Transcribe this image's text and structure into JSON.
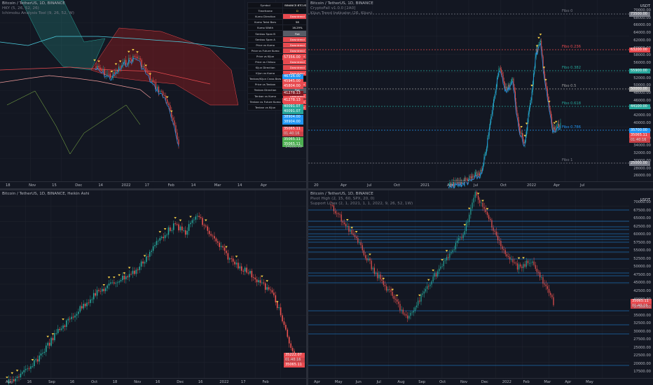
{
  "panes": {
    "tl": {
      "legend": [
        "Bitcoin / TetherUS, 1D, BINANCE",
        "HKY (5, 26, 52, 26)",
        "Ichimoku Analysis Tool (9, 26, 52, W)"
      ],
      "y_ticks": [],
      "x_ticks": [
        "18",
        "Nov",
        "15",
        "Dec",
        "14",
        "2022",
        "17",
        "Feb",
        "14",
        "Mar",
        "14",
        "Apr"
      ],
      "table": [
        [
          "Symbol",
          "BINANCE:BTCUSDT",
          "plain"
        ],
        [
          "Timeframe",
          "D",
          "yellow"
        ],
        [
          "Kumo Direction",
          "Downtrend",
          "red"
        ],
        [
          "Kumo Twist Bars",
          "58",
          "plain"
        ],
        [
          "Kumo Width",
          "16.29%",
          "plain"
        ],
        [
          "Senkou Span B",
          "Flat",
          "grey"
        ],
        [
          "Senkou Span A",
          "Downtrend",
          "red"
        ],
        [
          "Price vs Kumo",
          "Downtrend",
          "red"
        ],
        [
          "Price vs Future Kumo",
          "Downtrend",
          "red"
        ],
        [
          "Price vs Kijun",
          "Downtrend",
          "red"
        ],
        [
          "Price vs Chikou",
          "Downtrend",
          "red"
        ],
        [
          "Kijun Direction",
          "Downtrend",
          "red"
        ],
        [
          "Kijun vs Kumo",
          "Downtrend",
          "red"
        ],
        [
          "Tenkan/Kijun Cross Bars",
          "18",
          "plain"
        ],
        [
          "Price vs Tenkan",
          "Downtrend",
          "red"
        ],
        [
          "Tenkan Direction",
          "Flat",
          "grey"
        ],
        [
          "Tenkan vs Kumo",
          "Downtrend",
          "red"
        ],
        [
          "Tenkan vs Future Kumo",
          "Downtrend",
          "red"
        ],
        [
          "Tenkan vs Kijun",
          "Downtrend",
          "red"
        ]
      ],
      "price_tags": [
        {
          "line1": "57356.00",
          "color": "#e84a4f"
        },
        {
          "line1": "46726.00",
          "color": "#2196f3"
        },
        {
          "line1": "45945.00",
          "color": "#e84a4f"
        },
        {
          "line1": "45804.00",
          "color": "#e84a4f"
        },
        {
          "line1": "41278.13",
          "color": "#801922"
        },
        {
          "line1": "41278.13",
          "color": "#e84a4f"
        },
        {
          "line1": "40091.07",
          "color": "#26a69a"
        },
        {
          "line1": "40091.07",
          "color": "#26a69a"
        },
        {
          "line1": "38904.00",
          "color": "#2196f3"
        },
        {
          "line1": "38904.00",
          "color": "#2196f3"
        },
        {
          "line1": "35065.11",
          "line2": "01:40:16",
          "color": "#e84a4f"
        },
        {
          "line1": "35065.11",
          "color": "#4caf50"
        },
        {
          "line1": "35065.11",
          "color": "#4caf50"
        }
      ],
      "axis_labels": [
        "34000.00"
      ]
    },
    "tr": {
      "legend": [
        "Bitcoin / TetherUS, 1D, BINANCE",
        "CryptoFall v1.0.0 [2A0]",
        "Kijun Trend Indicator (26, Kijun)"
      ],
      "usdt": "USDT",
      "y_ticks": [
        "70000.00",
        "68000.00",
        "66000.00",
        "64000.00",
        "62000.00",
        "60000.00",
        "58000.00",
        "56000.00",
        "54000.00",
        "52000.00",
        "50000.00",
        "48000.00",
        "46000.00",
        "44000.00",
        "42000.00",
        "40000.00",
        "38000.00",
        "36000.00",
        "34000.00",
        "32000.00",
        "30000.00",
        "28000.00",
        "26000.00"
      ],
      "x_ticks": [
        "20",
        "Apr",
        "Jul",
        "Oct",
        "2021",
        "Apr",
        "Jul",
        "Oct",
        "2022",
        "Apr",
        "Jul"
      ],
      "fibos": [
        {
          "label": "Fibo 0",
          "color": "#787b86",
          "tag": "73500.00"
        },
        {
          "label": "Fibo 0.236",
          "color": "#e84a4f",
          "tag": "63200.00"
        },
        {
          "label": "Fibo 0.382",
          "color": "#26a69a",
          "tag": "55900.00"
        },
        {
          "label": "Fibo 0.5",
          "color": "#9e9e9e",
          "tag": "50000.00"
        },
        {
          "label": "Fibo 0.618",
          "color": "#26a69a",
          "tag": "44100.00"
        },
        {
          "label": "Fibo 0.786",
          "color": "#2196f3",
          "tag": "35700.00"
        },
        {
          "label": "Fibo 1",
          "color": "#787b86",
          "tag": "25000.00"
        }
      ],
      "last_tag": {
        "line1": "35065.11",
        "line2": "01:40:16",
        "color": "#e84a4f"
      }
    },
    "bl": {
      "legend": [
        "Bitcoin / TetherUS, 1D, BINANCE, Heikin Ashi"
      ],
      "x_ticks": [
        "Aug",
        "16",
        "Sep",
        "16",
        "Oct",
        "18",
        "Nov",
        "16",
        "Dec",
        "16",
        "2022",
        "17",
        "Feb"
      ],
      "tags": [
        {
          "line1": "35222.07",
          "line2": "01:40:16",
          "color": "#e84a4f"
        },
        {
          "line1": "35065.11",
          "color": "#e84a4f"
        }
      ]
    },
    "br": {
      "legend": [
        "Bitcoin / TetherUS, 1D, BINANCE",
        "Pivot High (2, 15, 60, SPX, 20, 0)",
        "Support Lines (2, 1, 2021, 1, 1, 2022, 9, 26, 52, 1W)"
      ],
      "usdt": "USDT",
      "y_ticks": [
        "70000.00",
        "67500.00",
        "65000.00",
        "62500.00",
        "60000.00",
        "57500.00",
        "55000.00",
        "52500.00",
        "50000.00",
        "47500.00",
        "45000.00",
        "42500.00",
        "40000.00",
        "37500.00",
        "35000.00",
        "32500.00",
        "30000.00",
        "27500.00",
        "25000.00",
        "22500.00",
        "20000.00",
        "17500.00"
      ],
      "x_ticks": [
        "Apr",
        "May",
        "Jun",
        "Jul",
        "Aug",
        "Sep",
        "Oct",
        "Nov",
        "Dec",
        "2022",
        "Feb",
        "Mar",
        "Apr",
        "May"
      ],
      "last_tag": {
        "line1": "35065.11",
        "line2": "01:40:16",
        "color": "#e84a4f"
      }
    },
    "bl_axis": [
      "70000.00",
      "67500.00",
      "65000.00",
      "62500.00",
      "60000.00",
      "57500.00",
      "55000.00",
      "52500.00",
      "50000.00",
      "47500.00",
      "45000.00",
      "42500.00",
      "40000.00",
      "37500.00"
    ]
  },
  "colors": {
    "bg": "#131722",
    "up": "#26a69a",
    "down": "#ef5350",
    "accent": "#2196f3"
  }
}
